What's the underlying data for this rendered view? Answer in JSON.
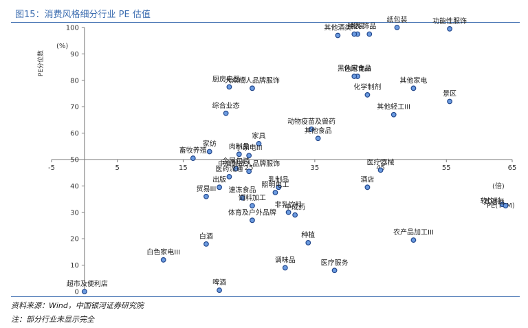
{
  "figure": {
    "title": "图15：消费风格细分行业 PE 估值",
    "source": "资料来源：Wind，中国银河证券研究院",
    "note": "注：部分行业未显示完全"
  },
  "chart_data": {
    "type": "scatter",
    "title": "",
    "xlabel": "PE(TTM)",
    "xunit": "(倍)",
    "ylabel": "PE分位数",
    "yunit": "(%)",
    "xlim": [
      -5,
      65
    ],
    "ylim": [
      0,
      100
    ],
    "x_ticks": [
      "-5",
      "5",
      "15",
      "25",
      "35",
      "45",
      "55",
      "65"
    ],
    "y_ticks": [
      "0",
      "10",
      "20",
      "30",
      "40",
      "50",
      "60",
      "70",
      "80",
      "90",
      "100"
    ],
    "grid": false,
    "points": [
      {
        "name": "其他酒类",
        "x": 38.5,
        "y": 97,
        "label": "其他酒类"
      },
      {
        "name": "服装",
        "x": 41.5,
        "y": 97.5,
        "label": "服装"
      },
      {
        "name": "饰品",
        "x": 43.3,
        "y": 97.5,
        "label": "饰品"
      },
      {
        "name": "钟表",
        "x": 41.0,
        "y": 97.5,
        "label": "钟表"
      },
      {
        "name": "纸包装",
        "x": 47.5,
        "y": 100,
        "label": "纸包装"
      },
      {
        "name": "功能性服饰",
        "x": 55.5,
        "y": 99.5,
        "label": "功能性服饰"
      },
      {
        "name": "休闲食品",
        "x": 41.5,
        "y": 81.5,
        "label": "休闲食品"
      },
      {
        "name": "黑色家电III",
        "x": 41.0,
        "y": 81.5,
        "label": "黑色家电III"
      },
      {
        "name": "厨房电器III",
        "x": 22.0,
        "y": 77.5,
        "label": "厨房电器III"
      },
      {
        "name": "大众成人品牌服饰",
        "x": 25.5,
        "y": 77.0,
        "label": "大众成人品牌服饰"
      },
      {
        "name": "其他家电",
        "x": 50.0,
        "y": 77.0,
        "label": "其他家电"
      },
      {
        "name": "化学制剂",
        "x": 43.0,
        "y": 74.5,
        "label": "化学制剂"
      },
      {
        "name": "景区",
        "x": 55.5,
        "y": 72.0,
        "label": "景区"
      },
      {
        "name": "综合业态",
        "x": 21.5,
        "y": 67.5,
        "label": "综合业态"
      },
      {
        "name": "其他轻工III",
        "x": 47.0,
        "y": 67.0,
        "label": "其他轻工III"
      },
      {
        "name": "动物疫苗及兽药",
        "x": 34.5,
        "y": 61.5,
        "label": "动物疫苗及兽药"
      },
      {
        "name": "其他食品",
        "x": 35.5,
        "y": 58.0,
        "label": "其他食品"
      },
      {
        "name": "家具",
        "x": 26.5,
        "y": 56.0,
        "label": "家具"
      },
      {
        "name": "畜牧养殖",
        "x": 16.5,
        "y": 50.5,
        "label": "畜牧养殖"
      },
      {
        "name": "家纺",
        "x": 19.0,
        "y": 53.0,
        "label": "家纺"
      },
      {
        "name": "小家电III",
        "x": 25.0,
        "y": 51.5,
        "label": "小家电III"
      },
      {
        "name": "肉制品",
        "x": 23.5,
        "y": 52.0,
        "label": "肉制品"
      },
      {
        "name": "金属包装",
        "x": 23.0,
        "y": 46.5,
        "label": "金属包装"
      },
      {
        "name": "中高端成人品牌服饰",
        "x": 25.0,
        "y": 45.5,
        "label": "中高端成人品牌服饰"
      },
      {
        "name": "医药流通",
        "x": 22.0,
        "y": 43.5,
        "label": "医药流通"
      },
      {
        "name": "医疗器械",
        "x": 45.0,
        "y": 46.0,
        "label": "医疗器械"
      },
      {
        "name": "酒店",
        "x": 43.0,
        "y": 39.5,
        "label": "酒店"
      },
      {
        "name": "出版",
        "x": 20.5,
        "y": 39.5,
        "label": "出版"
      },
      {
        "name": "乳制品",
        "x": 29.5,
        "y": 39.5,
        "label": "乳制品"
      },
      {
        "name": "照明电工",
        "x": 29.0,
        "y": 37.5,
        "label": "照明电工"
      },
      {
        "name": "贸易III",
        "x": 18.5,
        "y": 36.0,
        "label": "贸易III"
      },
      {
        "name": "速冻食品",
        "x": 24.0,
        "y": 35.5,
        "label": "速冻食品"
      },
      {
        "name": "饲料加工",
        "x": 25.5,
        "y": 32.5,
        "label": "饲料加工"
      },
      {
        "name": "非乳饮料",
        "x": 31.0,
        "y": 30.0,
        "label": "非乳饮料"
      },
      {
        "name": "中成药",
        "x": 32.0,
        "y": 29.0,
        "label": "中成药"
      },
      {
        "name": "体育及户外品牌",
        "x": 25.5,
        "y": 27.0,
        "label": "体育及户外品牌"
      },
      {
        "name": "软饮料",
        "x": 63.5,
        "y": 33.0,
        "label": "软饮料"
      },
      {
        "name": "其他酒",
        "x": 64.0,
        "y": 32.5,
        "label": "其他酒"
      },
      {
        "name": "种植",
        "x": 34.0,
        "y": 18.5,
        "label": "种植"
      },
      {
        "name": "白酒",
        "x": 18.5,
        "y": 18.0,
        "label": "白酒"
      },
      {
        "name": "农产品加工III",
        "x": 50.0,
        "y": 19.5,
        "label": "农产品加工III"
      },
      {
        "name": "白色家电III",
        "x": 12.0,
        "y": 12.0,
        "label": "白色家电III"
      },
      {
        "name": "调味品",
        "x": 30.5,
        "y": 9.0,
        "label": "调味品"
      },
      {
        "name": "医疗服务",
        "x": 38.0,
        "y": 8.0,
        "label": "医疗服务"
      },
      {
        "name": "超市及便利店",
        "x": 0,
        "y": 0,
        "label": "超市及便利店"
      },
      {
        "name": "啤酒",
        "x": 20.5,
        "y": 0.5,
        "label": "啤酒"
      }
    ]
  }
}
